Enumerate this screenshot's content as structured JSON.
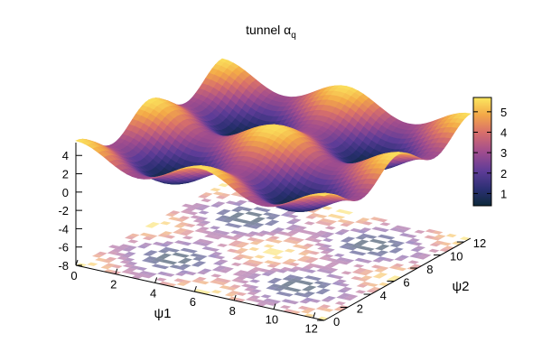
{
  "chart_data": {
    "type": "surface3d",
    "title": "tunnel α",
    "title_subscript": "q",
    "xlabel": "ψ1",
    "ylabel": "ψ2",
    "zlabel": "",
    "xlim": [
      0,
      12.56
    ],
    "ylim": [
      0,
      12.56
    ],
    "zlim": [
      -8,
      5.7
    ],
    "x_ticks": [
      "0",
      "2",
      "4",
      "6",
      "8",
      "10",
      "12"
    ],
    "y_ticks": [
      "0",
      "2",
      "4",
      "6",
      "8",
      "10",
      "12"
    ],
    "z_ticks": [
      "-8",
      "-6",
      "-4",
      "-2",
      "0",
      "2",
      "4"
    ],
    "colorbar_ticks": [
      "1",
      "2",
      "3",
      "4",
      "5"
    ],
    "colorbar_range": [
      0.4,
      5.7
    ],
    "surface_function": "3 + 1.3*cos(psi1) + 1.3*cos(psi2)",
    "base_contour_plane": "z = -8",
    "grid": false,
    "legend": "none",
    "colormap": [
      "#0d2a3a",
      "#3b2f7a",
      "#7a3f9b",
      "#c15a86",
      "#e98a58",
      "#f6c24a",
      "#fbe85f"
    ]
  }
}
